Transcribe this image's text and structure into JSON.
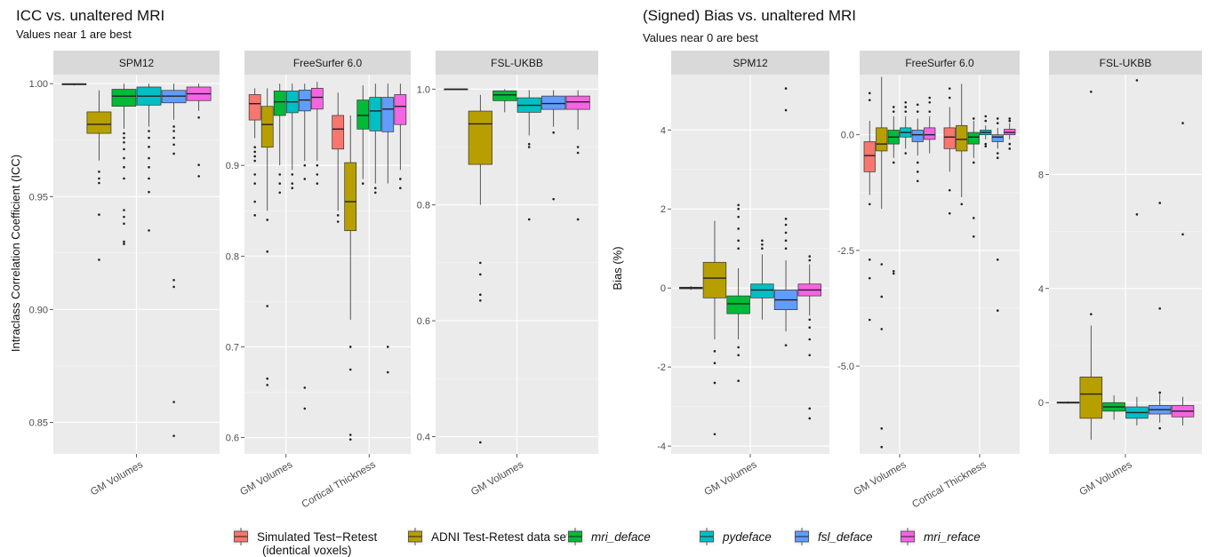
{
  "sections": [
    {
      "title": "ICC vs. unaltered MRI",
      "subtitle": "Values near 1 are best"
    },
    {
      "title": "(Signed) Bias vs. unaltered MRI",
      "subtitle": "Values near 0 are best"
    }
  ],
  "legend": [
    {
      "label": "Simulated Test−Retest",
      "label2": "(identical voxels)",
      "color": "#F8766D",
      "italic": false
    },
    {
      "label": "ADNI Test-Retest data set",
      "color": "#B79F00",
      "italic": false
    },
    {
      "label": "mri_deface",
      "color": "#00BA38",
      "italic": true
    },
    {
      "label": "pydeface",
      "color": "#00BFC4",
      "italic": true
    },
    {
      "label": "fsl_deface",
      "color": "#619CFF",
      "italic": true
    },
    {
      "label": "mri_reface",
      "color": "#F564E3",
      "italic": true
    }
  ],
  "chart_data": [
    {
      "type": "boxplot",
      "section": 0,
      "facet": "SPM12",
      "ylabel": "Intraclass Correlation Coefficient (ICC)",
      "ylim": [
        0.836,
        1.004
      ],
      "yticks": [
        0.85,
        0.9,
        0.95,
        1.0
      ],
      "ytick_labels": [
        "0.85",
        "0.90",
        "0.95",
        "1.00"
      ],
      "categories": [
        "GM Volumes"
      ],
      "boxes": [
        {
          "cat": 0,
          "series": 0,
          "q1": 0.9995,
          "med": 0.9998,
          "q3": 1.0,
          "lo": 0.9992,
          "hi": 1.0,
          "out": []
        },
        {
          "cat": 0,
          "series": 1,
          "q1": 0.978,
          "med": 0.982,
          "q3": 0.9875,
          "lo": 0.966,
          "hi": 0.997,
          "out": [
            0.961,
            0.958,
            0.956,
            0.942,
            0.922
          ]
        },
        {
          "cat": 0,
          "series": 2,
          "q1": 0.99,
          "med": 0.9945,
          "q3": 0.9975,
          "lo": 0.98,
          "hi": 1.0,
          "out": [
            0.978,
            0.976,
            0.974,
            0.971,
            0.967,
            0.963,
            0.958,
            0.944,
            0.941,
            0.938,
            0.93,
            0.929
          ]
        },
        {
          "cat": 0,
          "series": 3,
          "q1": 0.9905,
          "med": 0.9945,
          "q3": 0.9985,
          "lo": 0.981,
          "hi": 1.0,
          "out": [
            0.979,
            0.976,
            0.972,
            0.967,
            0.963,
            0.958,
            0.952,
            0.935
          ]
        },
        {
          "cat": 0,
          "series": 4,
          "q1": 0.9915,
          "med": 0.9945,
          "q3": 0.997,
          "lo": 0.984,
          "hi": 1.0,
          "out": [
            0.981,
            0.979,
            0.976,
            0.973,
            0.969,
            0.913,
            0.91,
            0.859,
            0.844
          ]
        },
        {
          "cat": 0,
          "series": 5,
          "q1": 0.9925,
          "med": 0.9955,
          "q3": 0.9985,
          "lo": 0.988,
          "hi": 1.0,
          "out": [
            0.985,
            0.964,
            0.959
          ]
        }
      ]
    },
    {
      "type": "boxplot",
      "section": 0,
      "facet": "FreeSurfer 6.0",
      "ylim": [
        0.582,
        1.0
      ],
      "yticks": [
        0.6,
        0.7,
        0.8,
        0.9
      ],
      "ytick_labels": [
        "0.6",
        "0.7",
        "0.8",
        "0.9"
      ],
      "categories": [
        "GM Volumes",
        "Cortical Thickness"
      ],
      "boxes": [
        {
          "cat": 0,
          "series": 0,
          "q1": 0.95,
          "med": 0.968,
          "q3": 0.978,
          "lo": 0.93,
          "hi": 0.985,
          "out": [
            0.92,
            0.915,
            0.91,
            0.905,
            0.89,
            0.88,
            0.86,
            0.845
          ]
        },
        {
          "cat": 0,
          "series": 1,
          "q1": 0.92,
          "med": 0.945,
          "q3": 0.965,
          "lo": 0.85,
          "hi": 0.985,
          "out": [
            0.84,
            0.805,
            0.745,
            0.665,
            0.658
          ]
        },
        {
          "cat": 0,
          "series": 2,
          "q1": 0.955,
          "med": 0.97,
          "q3": 0.982,
          "lo": 0.9,
          "hi": 0.99,
          "out": [
            0.89,
            0.88,
            0.87
          ]
        },
        {
          "cat": 0,
          "series": 3,
          "q1": 0.958,
          "med": 0.97,
          "q3": 0.982,
          "lo": 0.895,
          "hi": 0.99,
          "out": [
            0.89,
            0.88,
            0.875
          ]
        },
        {
          "cat": 0,
          "series": 4,
          "q1": 0.96,
          "med": 0.972,
          "q3": 0.983,
          "lo": 0.905,
          "hi": 0.99,
          "out": [
            0.9,
            0.885,
            0.655,
            0.632
          ]
        },
        {
          "cat": 0,
          "series": 5,
          "q1": 0.962,
          "med": 0.975,
          "q3": 0.985,
          "lo": 0.905,
          "hi": 0.992,
          "out": [
            0.9,
            0.89,
            0.88
          ]
        },
        {
          "cat": 1,
          "series": 0,
          "q1": 0.918,
          "med": 0.94,
          "q3": 0.955,
          "lo": 0.85,
          "hi": 0.98,
          "out": [
            0.845,
            0.838
          ]
        },
        {
          "cat": 1,
          "series": 1,
          "q1": 0.828,
          "med": 0.86,
          "q3": 0.903,
          "lo": 0.73,
          "hi": 0.955,
          "out": [
            0.7,
            0.675,
            0.603,
            0.598
          ]
        },
        {
          "cat": 1,
          "series": 2,
          "q1": 0.94,
          "med": 0.955,
          "q3": 0.972,
          "lo": 0.885,
          "hi": 0.988,
          "out": [
            0.88
          ]
        },
        {
          "cat": 1,
          "series": 3,
          "q1": 0.938,
          "med": 0.96,
          "q3": 0.975,
          "lo": 0.88,
          "hi": 0.99,
          "out": [
            0.875,
            0.87
          ]
        },
        {
          "cat": 1,
          "series": 4,
          "q1": 0.937,
          "med": 0.962,
          "q3": 0.975,
          "lo": 0.88,
          "hi": 0.99,
          "out": [
            0.7,
            0.672
          ]
        },
        {
          "cat": 1,
          "series": 5,
          "q1": 0.945,
          "med": 0.965,
          "q3": 0.978,
          "lo": 0.895,
          "hi": 0.99,
          "out": [
            0.885,
            0.875
          ]
        }
      ]
    },
    {
      "type": "boxplot",
      "section": 0,
      "facet": "FSL-UKBB",
      "ylim": [
        0.37,
        1.025
      ],
      "yticks": [
        0.4,
        0.6,
        0.8,
        1.0
      ],
      "ytick_labels": [
        "0.4",
        "0.6",
        "0.8",
        "1.0"
      ],
      "categories": [
        "GM Volumes"
      ],
      "boxes": [
        {
          "cat": 0,
          "series": 0,
          "q1": 0.9995,
          "med": 1.0,
          "q3": 1.0,
          "lo": 0.999,
          "hi": 1.0,
          "out": []
        },
        {
          "cat": 0,
          "series": 1,
          "q1": 0.87,
          "med": 0.94,
          "q3": 0.962,
          "lo": 0.8,
          "hi": 0.99,
          "out": [
            0.7,
            0.68,
            0.645,
            0.635,
            0.39
          ]
        },
        {
          "cat": 0,
          "series": 2,
          "q1": 0.98,
          "med": 0.99,
          "q3": 0.997,
          "lo": 0.96,
          "hi": 1.0,
          "out": []
        },
        {
          "cat": 0,
          "series": 3,
          "q1": 0.96,
          "med": 0.972,
          "q3": 0.985,
          "lo": 0.92,
          "hi": 0.998,
          "out": [
            0.905,
            0.9,
            0.775
          ]
        },
        {
          "cat": 0,
          "series": 4,
          "q1": 0.965,
          "med": 0.975,
          "q3": 0.988,
          "lo": 0.935,
          "hi": 0.998,
          "out": [
            0.925,
            0.81
          ]
        },
        {
          "cat": 0,
          "series": 5,
          "q1": 0.965,
          "med": 0.978,
          "q3": 0.988,
          "lo": 0.93,
          "hi": 0.998,
          "out": [
            0.9,
            0.89,
            0.775
          ]
        }
      ]
    },
    {
      "type": "boxplot",
      "section": 1,
      "facet": "SPM12",
      "ylabel": "Bias (%)",
      "ylim": [
        -4.2,
        5.4
      ],
      "yticks": [
        -4,
        -2,
        0,
        2,
        4
      ],
      "ytick_labels": [
        "-4",
        "-2",
        "0",
        "2",
        "4"
      ],
      "categories": [
        "GM Volumes"
      ],
      "boxes": [
        {
          "cat": 0,
          "series": 0,
          "q1": -0.02,
          "med": 0.0,
          "q3": 0.02,
          "lo": -0.05,
          "hi": 0.05,
          "out": []
        },
        {
          "cat": 0,
          "series": 1,
          "q1": -0.25,
          "med": 0.25,
          "q3": 0.65,
          "lo": -1.3,
          "hi": 1.7,
          "out": [
            -1.6,
            -1.9,
            -2.4,
            -3.7
          ]
        },
        {
          "cat": 0,
          "series": 2,
          "q1": -0.65,
          "med": -0.4,
          "q3": -0.2,
          "lo": -1.3,
          "hi": 0.5,
          "out": [
            1.0,
            1.2,
            1.5,
            1.8,
            2.0,
            2.1,
            -1.5,
            -1.7,
            -2.35
          ]
        },
        {
          "cat": 0,
          "series": 3,
          "q1": -0.25,
          "med": -0.05,
          "q3": 0.1,
          "lo": -0.8,
          "hi": 0.85,
          "out": [
            1.0,
            1.1,
            1.2
          ]
        },
        {
          "cat": 0,
          "series": 4,
          "q1": -0.55,
          "med": -0.3,
          "q3": -0.05,
          "lo": -1.1,
          "hi": 0.7,
          "out": [
            1.0,
            1.2,
            1.4,
            1.6,
            1.75,
            -1.45,
            4.5,
            5.05
          ]
        },
        {
          "cat": 0,
          "series": 5,
          "q1": -0.2,
          "med": -0.05,
          "q3": 0.1,
          "lo": -0.7,
          "hi": 0.6,
          "out": [
            0.7,
            0.8,
            -0.8,
            -1.0,
            -1.3,
            -1.7,
            -3.05,
            -3.3
          ]
        }
      ]
    },
    {
      "type": "boxplot",
      "section": 1,
      "facet": "FreeSurfer 6.0",
      "ylim": [
        -6.9,
        1.3
      ],
      "yticks": [
        -5.0,
        -2.5,
        0.0
      ],
      "ytick_labels": [
        "-5.0",
        "-2.5",
        "0.0"
      ],
      "categories": [
        "GM Volumes",
        "Cortical Thickness"
      ],
      "boxes": [
        {
          "cat": 0,
          "series": 0,
          "q1": -0.8,
          "med": -0.45,
          "q3": -0.15,
          "lo": -1.3,
          "hi": 0.3,
          "out": [
            0.9,
            0.75,
            -1.5,
            -2.7,
            -3.1,
            -4.0
          ]
        },
        {
          "cat": 0,
          "series": 1,
          "q1": -0.35,
          "med": -0.2,
          "q3": 0.15,
          "lo": -1.6,
          "hi": 1.25,
          "out": [
            -2.8,
            -4.2,
            -3.5,
            -6.35,
            -6.75
          ]
        },
        {
          "cat": 0,
          "series": 2,
          "q1": -0.2,
          "med": -0.05,
          "q3": 0.1,
          "lo": -0.5,
          "hi": 0.4,
          "out": [
            0.5,
            0.6,
            -0.6,
            -2.95,
            -3.0
          ]
        },
        {
          "cat": 0,
          "series": 3,
          "q1": -0.05,
          "med": 0.05,
          "q3": 0.15,
          "lo": -0.3,
          "hi": 0.4,
          "out": [
            0.5,
            0.6,
            0.7,
            -0.4
          ]
        },
        {
          "cat": 0,
          "series": 4,
          "q1": -0.15,
          "med": 0.0,
          "q3": 0.1,
          "lo": -0.45,
          "hi": 0.35,
          "out": [
            0.5,
            0.65,
            -0.6,
            -0.8,
            -1.0
          ]
        },
        {
          "cat": 0,
          "series": 5,
          "q1": -0.1,
          "med": 0.0,
          "q3": 0.15,
          "lo": -0.4,
          "hi": 0.4,
          "out": [
            0.5,
            0.7,
            0.8
          ]
        },
        {
          "cat": 1,
          "series": 0,
          "q1": -0.3,
          "med": -0.05,
          "q3": 0.15,
          "lo": -0.8,
          "hi": 0.6,
          "out": [
            0.8,
            1.0,
            -1.2,
            -1.7
          ]
        },
        {
          "cat": 1,
          "series": 1,
          "q1": -0.35,
          "med": -0.1,
          "q3": 0.2,
          "lo": -1.35,
          "hi": 1.1,
          "out": [
            -1.5
          ]
        },
        {
          "cat": 1,
          "series": 2,
          "q1": -0.2,
          "med": -0.05,
          "q3": 0.05,
          "lo": -0.5,
          "hi": 0.3,
          "out": [
            0.35,
            -0.6,
            -1.8,
            -2.2
          ]
        },
        {
          "cat": 1,
          "series": 3,
          "q1": 0.0,
          "med": 0.05,
          "q3": 0.1,
          "lo": -0.1,
          "hi": 0.2,
          "out": [
            0.3,
            0.4,
            -0.2,
            -0.25
          ]
        },
        {
          "cat": 1,
          "series": 4,
          "q1": -0.15,
          "med": -0.05,
          "q3": 0.0,
          "lo": -0.3,
          "hi": 0.15,
          "out": [
            0.25,
            0.35,
            -0.4,
            -0.5,
            -2.7,
            -3.8
          ]
        },
        {
          "cat": 1,
          "series": 5,
          "q1": 0.0,
          "med": 0.05,
          "q3": 0.12,
          "lo": -0.1,
          "hi": 0.25,
          "out": [
            0.3,
            0.35,
            -0.2,
            -0.3
          ]
        }
      ]
    },
    {
      "type": "boxplot",
      "section": 1,
      "facet": "FSL-UKBB",
      "ylim": [
        -1.8,
        11.5
      ],
      "yticks": [
        0,
        4,
        8
      ],
      "ytick_labels": [
        "0",
        "4",
        "8"
      ],
      "categories": [
        "GM Volumes"
      ],
      "boxes": [
        {
          "cat": 0,
          "series": 0,
          "q1": -0.02,
          "med": 0.0,
          "q3": 0.02,
          "lo": -0.04,
          "hi": 0.04,
          "out": []
        },
        {
          "cat": 0,
          "series": 1,
          "q1": -0.55,
          "med": 0.3,
          "q3": 0.9,
          "lo": -1.3,
          "hi": 2.7,
          "out": [
            3.1,
            10.9
          ]
        },
        {
          "cat": 0,
          "series": 2,
          "q1": -0.3,
          "med": -0.15,
          "q3": 0.0,
          "lo": -0.6,
          "hi": 0.25,
          "out": []
        },
        {
          "cat": 0,
          "series": 3,
          "q1": -0.55,
          "med": -0.35,
          "q3": -0.15,
          "lo": -0.8,
          "hi": 0.2,
          "out": [
            11.3,
            6.6
          ]
        },
        {
          "cat": 0,
          "series": 4,
          "q1": -0.4,
          "med": -0.25,
          "q3": -0.1,
          "lo": -0.7,
          "hi": 0.3,
          "out": [
            0.35,
            -0.9,
            3.3,
            7.0
          ]
        },
        {
          "cat": 0,
          "series": 5,
          "q1": -0.5,
          "med": -0.3,
          "q3": -0.1,
          "lo": -0.8,
          "hi": 0.2,
          "out": [
            9.8,
            5.9
          ]
        }
      ]
    }
  ]
}
